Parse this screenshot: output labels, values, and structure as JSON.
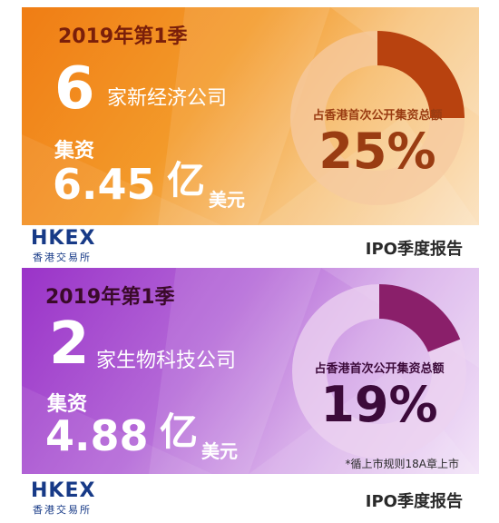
{
  "cards": [
    {
      "quarter": "2019年第1季",
      "count": "6",
      "company_desc": "家新经济公司",
      "raise_label": "集资",
      "amount": "6.45",
      "amount_unit_big": "亿",
      "amount_unit_small": "美元",
      "share_caption": "占香港首次公开集资总额",
      "share_percent": "25%",
      "share_value": 25,
      "logo_text": "HKEX",
      "logo_subtext": "香港交易所",
      "report_title": "IPO季度报告",
      "ring_color": "#b8420f",
      "ring_track_color": "#f6c9a0"
    },
    {
      "quarter": "2019年第1季",
      "count": "2",
      "company_desc": "家生物科技公司",
      "raise_label": "集资",
      "amount": "4.88",
      "amount_unit_big": "亿",
      "amount_unit_small": "美元",
      "share_caption": "占香港首次公开集资总额",
      "share_percent": "19%",
      "share_value": 19,
      "footnote": "*循上市规则18A章上市",
      "logo_text": "HKEX",
      "logo_subtext": "香港交易所",
      "report_title": "IPO季度报告",
      "ring_color": "#8a1f6a",
      "ring_track_color": "#ecd3f0"
    }
  ]
}
